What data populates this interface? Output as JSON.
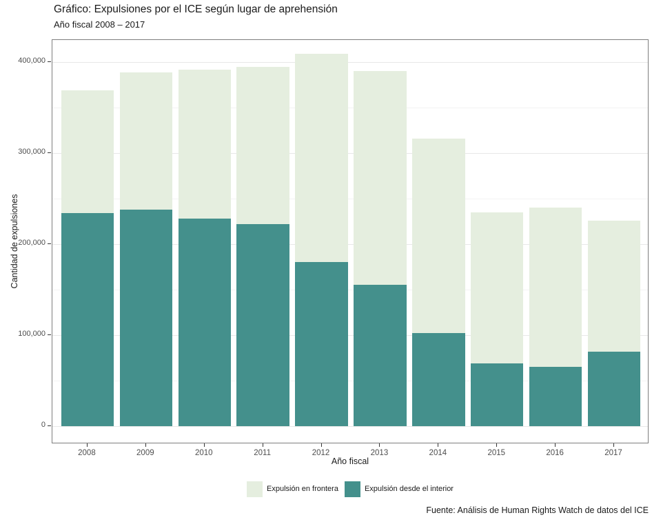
{
  "header": {
    "title": "Gráfico: Expulsiones por el ICE según lugar de aprehensión",
    "subtitle": "Año fiscal 2008 – 2017"
  },
  "caption": "Fuente: Análisis de Human Rights Watch de datos del ICE",
  "colors": {
    "frontera": "#E5EEDF",
    "interior": "#44908C",
    "panel_border": "#7D7D7D",
    "grid_major": "#E7E7E7",
    "grid_minor": "#F3F3F3",
    "axis_text": "#4D4D4D",
    "text": "#1A1A1A"
  },
  "chart_data": {
    "type": "bar",
    "stacked": true,
    "title": "Gráfico: Expulsiones por el ICE según lugar de aprehensión",
    "subtitle": "Año fiscal 2008 – 2017",
    "xlabel": "Año fiscal",
    "ylabel": "Cantidad de expulsiones",
    "categories": [
      "2008",
      "2009",
      "2010",
      "2011",
      "2012",
      "2013",
      "2014",
      "2015",
      "2016",
      "2017"
    ],
    "series": [
      {
        "name": "Expulsión en frontera",
        "color": "#E5EEDF",
        "values": [
          135000,
          151000,
          164000,
          173000,
          229000,
          235000,
          214000,
          166000,
          175000,
          144000
        ]
      },
      {
        "name": "Expulsión desde el interior",
        "color": "#44908C",
        "values": [
          234000,
          238000,
          228000,
          222000,
          180000,
          155000,
          102000,
          69000,
          65000,
          82000
        ]
      }
    ],
    "stack_order_bottom_to_top": [
      "Expulsión desde el interior",
      "Expulsión en frontera"
    ],
    "totals": [
      369000,
      389000,
      392000,
      395000,
      409000,
      390000,
      316000,
      235000,
      240000,
      226000
    ],
    "ylim": [
      0,
      424000
    ],
    "yticks": [
      0,
      100000,
      200000,
      300000,
      400000
    ],
    "ytick_labels": [
      "0",
      "100,000",
      "200,000",
      "300,000",
      "400,000"
    ],
    "y_minor_ticks": [
      50000,
      150000,
      250000,
      350000
    ],
    "legend_position": "bottom",
    "grid": true
  }
}
